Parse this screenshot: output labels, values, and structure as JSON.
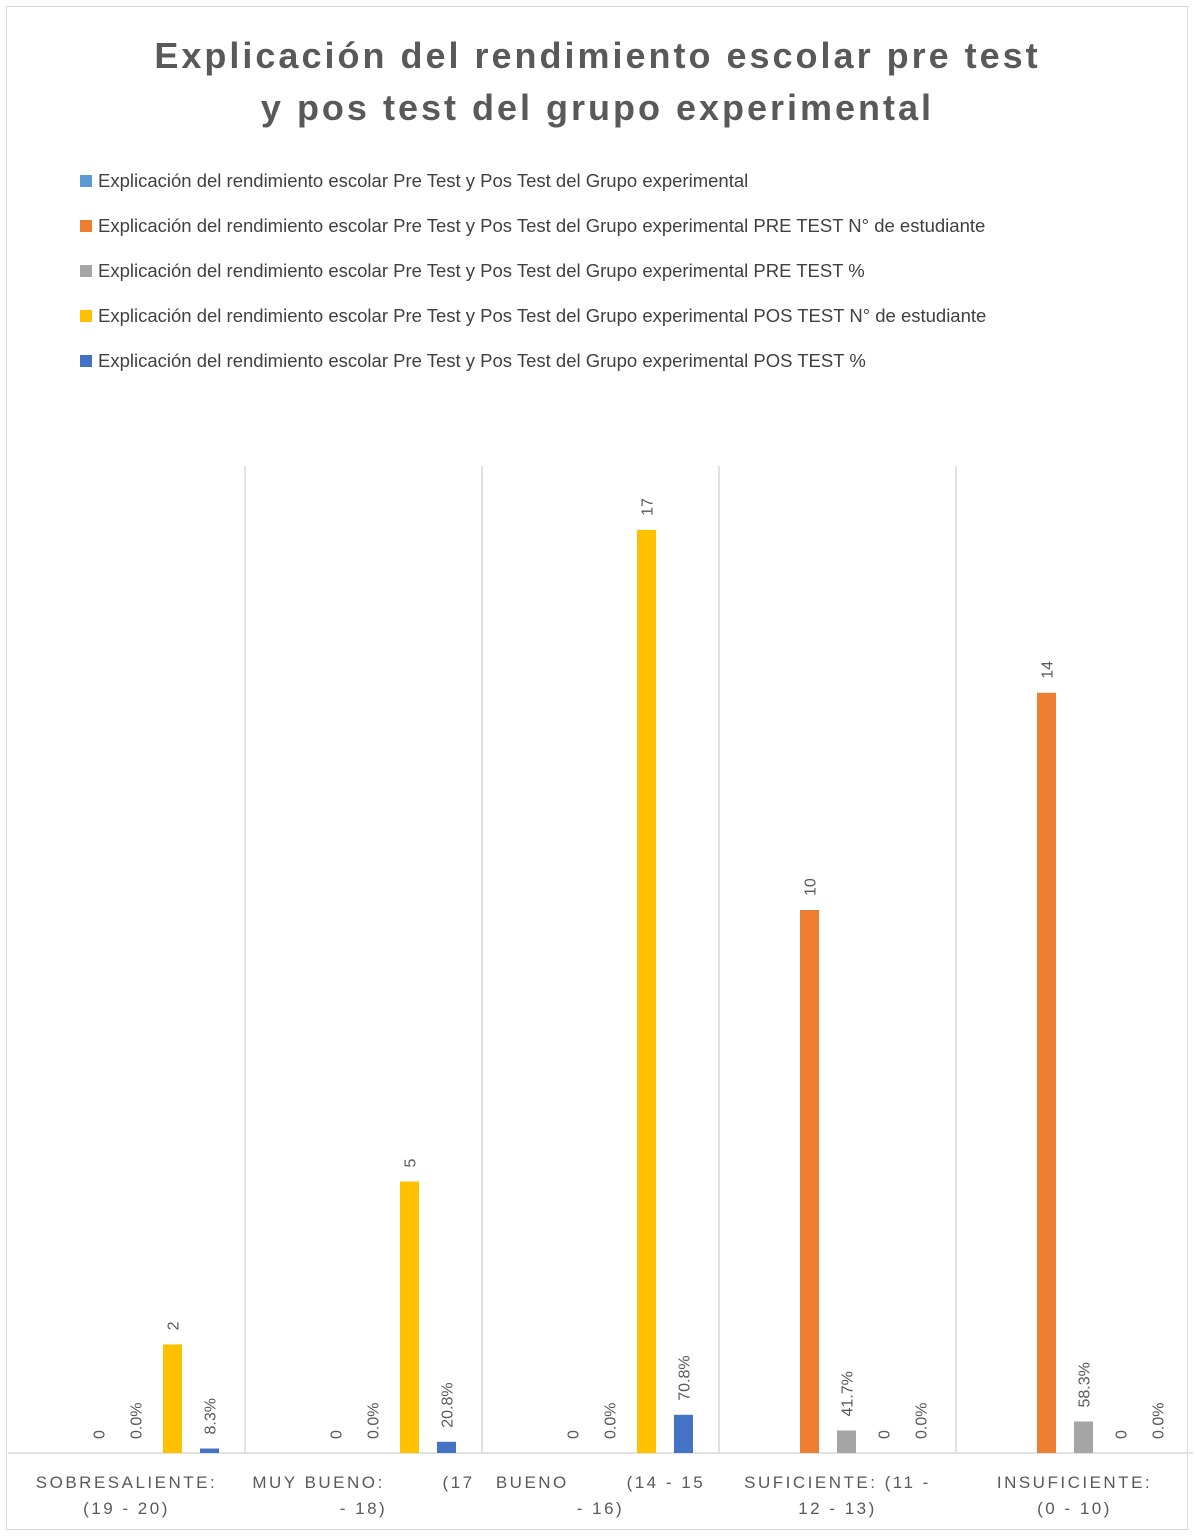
{
  "title_line1": "Explicación del rendimiento escolar pre test",
  "title_line2": "y pos test del grupo experimental",
  "legend": [
    {
      "label": "Explicación del rendimiento escolar Pre Test y Pos Test del Grupo experimental",
      "color": "#5b9bd5"
    },
    {
      "label": "Explicación del rendimiento escolar Pre Test y Pos Test del Grupo experimental PRE TEST N° de estudiante",
      "color": "#ed7d31"
    },
    {
      "label": "Explicación del rendimiento escolar Pre Test y Pos Test del Grupo experimental PRE TEST %",
      "color": "#a5a5a5"
    },
    {
      "label": "Explicación del rendimiento escolar Pre Test y Pos Test del Grupo experimental POS TEST N° de estudiante",
      "color": "#ffc000"
    },
    {
      "label": "Explicación del rendimiento escolar Pre Test y Pos Test del Grupo experimental POS TEST %",
      "color": "#4472c4"
    }
  ],
  "chart_data": {
    "type": "bar",
    "title": "Explicación del rendimiento escolar pre test y pos test del grupo experimental",
    "categories": [
      [
        "SOBRESALIENTE:",
        "(19 - 20)"
      ],
      [
        "MUY BUENO:        (17",
        "- 18)"
      ],
      [
        "BUENO        (14 - 15",
        "- 16)"
      ],
      [
        "SUFICIENTE: (11 -",
        "12 - 13)"
      ],
      [
        "INSUFICIENTE:",
        "(0 - 10)"
      ]
    ],
    "series": [
      {
        "name": "Explicación del rendimiento escolar Pre Test y Pos Test del Grupo experimental PRE TEST N° de estudiante",
        "color": "#ed7d31",
        "values": [
          0,
          0,
          0,
          10,
          14
        ],
        "labels": [
          "0",
          "0",
          "0",
          "10",
          "14"
        ]
      },
      {
        "name": "Explicación del rendimiento escolar Pre Test y Pos Test del Grupo experimental PRE TEST %",
        "color": "#a5a5a5",
        "values": [
          0,
          0,
          0,
          0.417,
          0.583
        ],
        "labels": [
          "0.0%",
          "0.0%",
          "0.0%",
          "41.7%",
          "58.3%"
        ]
      },
      {
        "name": "Explicación del rendimiento escolar Pre Test y Pos Test del Grupo experimental POS TEST N° de estudiante",
        "color": "#ffc000",
        "values": [
          2,
          5,
          17,
          0,
          0
        ],
        "labels": [
          "2",
          "5",
          "17",
          "0",
          "0"
        ]
      },
      {
        "name": "Explicación del rendimiento escolar Pre Test y Pos Test del Grupo experimental POS TEST %",
        "color": "#4472c4",
        "values": [
          0.083,
          0.208,
          0.708,
          0,
          0
        ],
        "labels": [
          "8.3%",
          "20.8%",
          "70.8%",
          "0.0%",
          "0.0%"
        ]
      }
    ],
    "ylim": [
      0,
      17
    ],
    "grid": "vertical category separators",
    "legend_position": "top"
  }
}
